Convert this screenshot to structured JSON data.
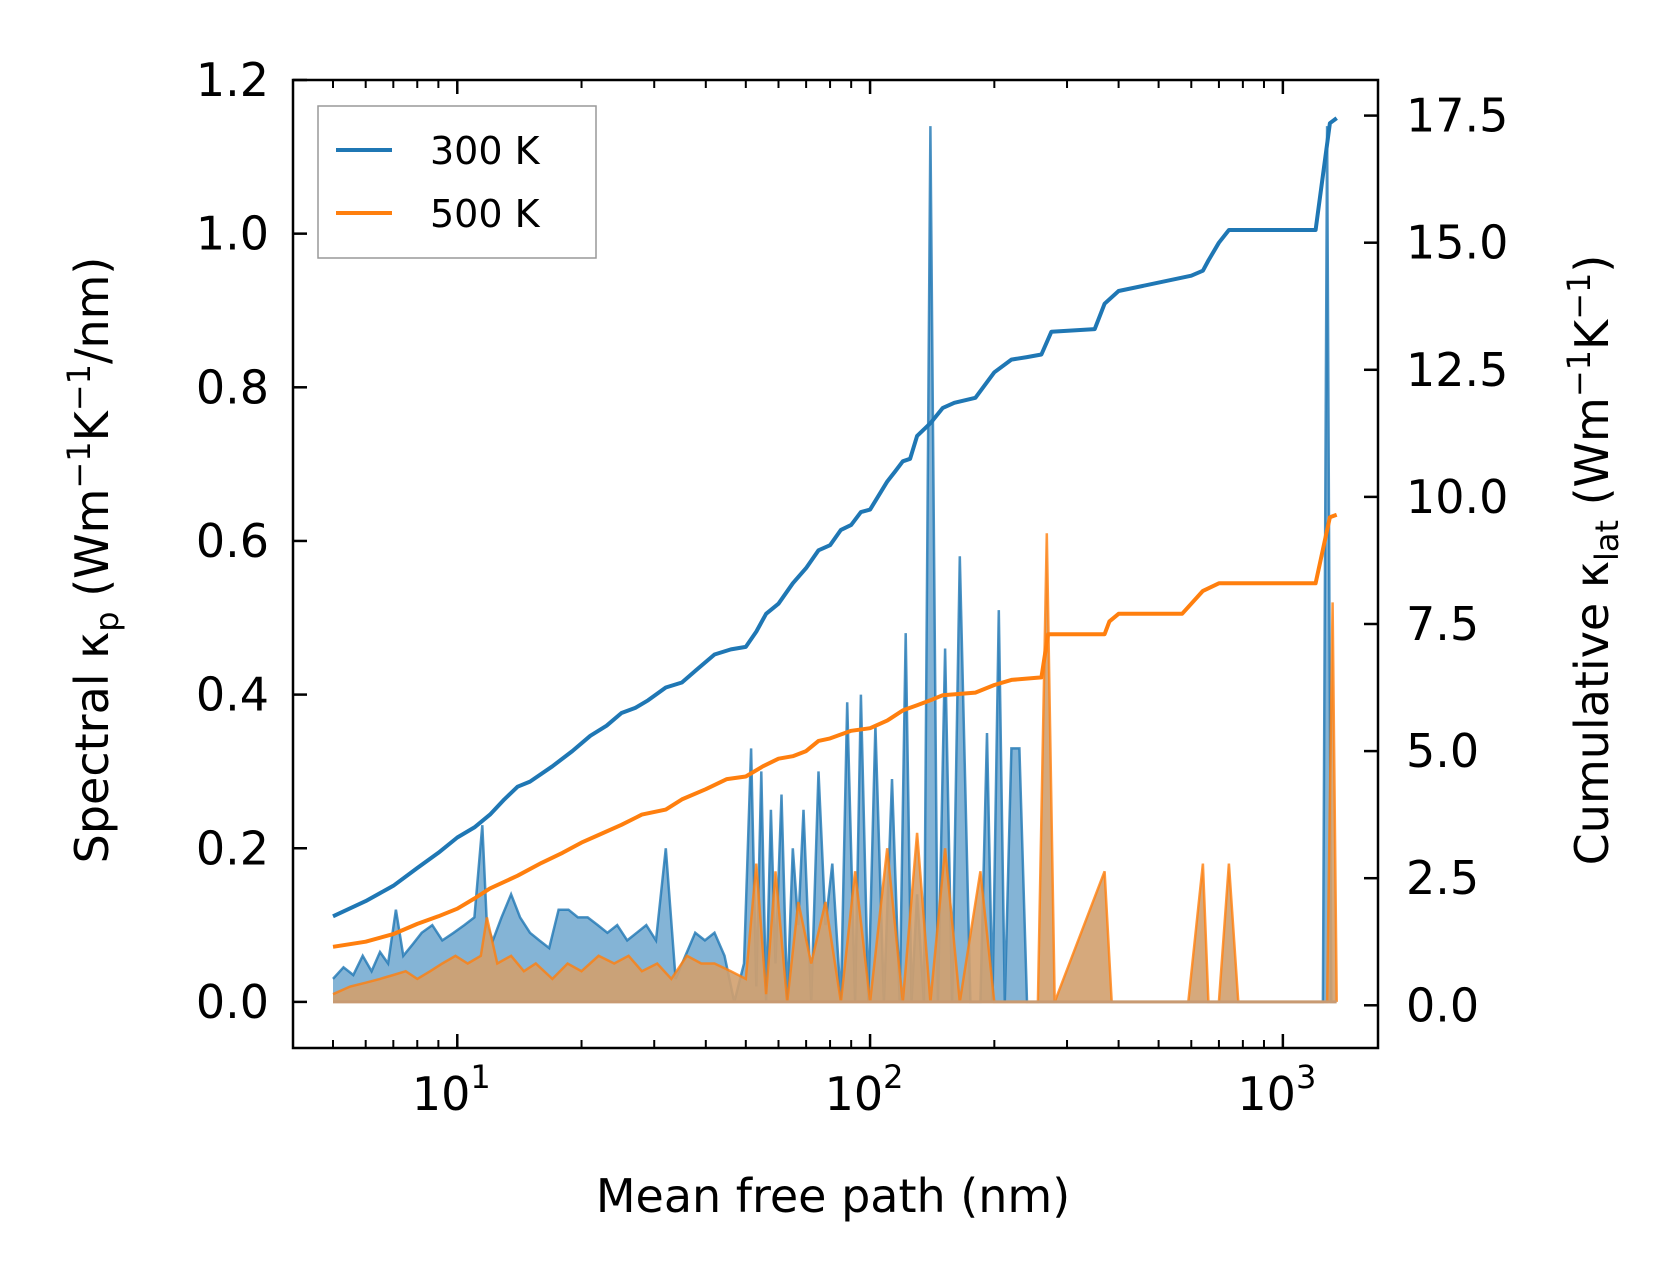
{
  "chart_data": {
    "type": "line",
    "title": "",
    "xlabel": "Mean free path (nm)",
    "ylabel_left": "Spectral κ_p (Wm⁻¹K⁻¹/nm)",
    "ylabel_right": "Cumulative κ_lat (Wm⁻¹K⁻¹)",
    "xscale": "log",
    "xlim": [
      4.0,
      1700
    ],
    "ylim_left": [
      -0.06,
      1.2
    ],
    "ylim_right": [
      -0.84,
      18.2
    ],
    "x_tick_labels": [
      {
        "base": "10",
        "exp": "1",
        "value": 10
      },
      {
        "base": "10",
        "exp": "2",
        "value": 100
      },
      {
        "base": "10",
        "exp": "3",
        "value": 1000
      }
    ],
    "y_left_tick_labels": [
      "0.0",
      "0.2",
      "0.4",
      "0.6",
      "0.8",
      "1.0",
      "1.2"
    ],
    "y_left_tick_values": [
      0.0,
      0.2,
      0.4,
      0.6,
      0.8,
      1.0,
      1.2
    ],
    "y_right_tick_labels": [
      "0.0",
      "2.5",
      "5.0",
      "7.5",
      "10.0",
      "12.5",
      "15.0",
      "17.5"
    ],
    "y_right_tick_values": [
      0.0,
      2.5,
      5.0,
      7.5,
      10.0,
      12.5,
      15.0,
      17.5
    ],
    "legend": {
      "position": "upper-left",
      "entries": [
        "300 K",
        "500 K"
      ]
    },
    "colors": {
      "300K": "#1f77b4",
      "500K": "#ff7f0e",
      "fill300": "#1f77b4",
      "fill500": "#d2a06e"
    },
    "cumulative_series": [
      {
        "name": "300 K",
        "color": "#1f77b4",
        "x": [
          5,
          6,
          7,
          8,
          9,
          10,
          11,
          12,
          13,
          14,
          15,
          17,
          19,
          21,
          23,
          25,
          27,
          29,
          32,
          35,
          38,
          42,
          46,
          50,
          53,
          56,
          60,
          65,
          70,
          75,
          80,
          85,
          90,
          95,
          100,
          110,
          115,
          120,
          125,
          130,
          140,
          150,
          160,
          180,
          200,
          220,
          240,
          260,
          275,
          350,
          370,
          400,
          600,
          640,
          660,
          700,
          740,
          1200,
          1300,
          1350
        ],
        "y": [
          1.75,
          2.05,
          2.35,
          2.7,
          3.0,
          3.3,
          3.5,
          3.75,
          4.05,
          4.3,
          4.4,
          4.7,
          5.0,
          5.3,
          5.5,
          5.75,
          5.85,
          6.0,
          6.25,
          6.35,
          6.6,
          6.9,
          7.0,
          7.05,
          7.35,
          7.7,
          7.9,
          8.3,
          8.6,
          8.95,
          9.05,
          9.35,
          9.45,
          9.7,
          9.75,
          10.3,
          10.5,
          10.7,
          10.75,
          11.2,
          11.45,
          11.75,
          11.85,
          11.95,
          12.45,
          12.7,
          12.75,
          12.8,
          13.25,
          13.3,
          13.8,
          14.05,
          14.35,
          14.45,
          14.65,
          15.0,
          15.25,
          15.25,
          17.35,
          17.45
        ]
      },
      {
        "name": "500 K",
        "color": "#ff7f0e",
        "x": [
          5,
          6,
          7,
          8,
          9,
          10,
          11,
          12,
          14,
          16,
          18,
          20,
          22,
          25,
          28,
          32,
          35,
          40,
          45,
          50,
          55,
          60,
          65,
          70,
          75,
          80,
          90,
          100,
          110,
          120,
          130,
          140,
          150,
          180,
          200,
          220,
          260,
          270,
          370,
          380,
          400,
          570,
          600,
          640,
          700,
          1200,
          1300,
          1350
        ],
        "y": [
          1.15,
          1.25,
          1.4,
          1.6,
          1.75,
          1.9,
          2.1,
          2.3,
          2.55,
          2.8,
          3.0,
          3.2,
          3.35,
          3.55,
          3.75,
          3.85,
          4.05,
          4.25,
          4.45,
          4.5,
          4.7,
          4.85,
          4.9,
          5.0,
          5.2,
          5.25,
          5.4,
          5.45,
          5.6,
          5.8,
          5.9,
          6.0,
          6.1,
          6.15,
          6.3,
          6.4,
          6.45,
          7.3,
          7.3,
          7.55,
          7.7,
          7.7,
          7.9,
          8.15,
          8.3,
          8.3,
          9.6,
          9.65
        ]
      }
    ],
    "spectral_series": [
      {
        "name": "300 K",
        "x": [
          5,
          5.3,
          5.6,
          5.9,
          6.2,
          6.5,
          6.8,
          7.1,
          7.4,
          7.8,
          8.2,
          8.7,
          9.2,
          9.8,
          10.4,
          11.0,
          11.5,
          11.8,
          12.2,
          12.8,
          13.5,
          14.2,
          15.0,
          15.8,
          16.7,
          17.6,
          18.6,
          19.6,
          20.7,
          21.9,
          23.1,
          24.4,
          25.8,
          27.2,
          28.7,
          30.3,
          32.0,
          33.8,
          35.7,
          37.7,
          39.8,
          42.0,
          44.4,
          46.9,
          49.5,
          51.5,
          53.0,
          54.5,
          56.0,
          57.5,
          59.0,
          61.0,
          63.0,
          65.0,
          67.0,
          69.0,
          72.0,
          75.0,
          78.0,
          81.0,
          85.0,
          88.0,
          92.0,
          95.0,
          99.0,
          103.0,
          108.0,
          113.0,
          118.0,
          122.0,
          126.0,
          130.0,
          135.0,
          140.0,
          146.0,
          152.0,
          158.0,
          165.0,
          175.0,
          185.0,
          192.0,
          198.0,
          205.0,
          212.0,
          220.0,
          230.0,
          240.0,
          250.0,
          262.0,
          268.0,
          275.0,
          300.0,
          340.0,
          360.0,
          375.0,
          385.0,
          395.0,
          405.0,
          420.0,
          520.0,
          560.0,
          580.0,
          600.0,
          630.0,
          650.0,
          670.0,
          690.0,
          710.0,
          730.0,
          750.0,
          770.0,
          800.0,
          1200.0,
          1250.0,
          1280.0,
          1310.0,
          1340.0
        ],
        "y": [
          0.03,
          0.045,
          0.035,
          0.06,
          0.04,
          0.065,
          0.05,
          0.12,
          0.06,
          0.075,
          0.09,
          0.1,
          0.08,
          0.09,
          0.1,
          0.11,
          0.23,
          0.1,
          0.08,
          0.11,
          0.14,
          0.11,
          0.09,
          0.08,
          0.07,
          0.12,
          0.12,
          0.11,
          0.11,
          0.1,
          0.09,
          0.1,
          0.08,
          0.09,
          0.1,
          0.08,
          0.2,
          0.03,
          0.06,
          0.09,
          0.08,
          0.09,
          0.06,
          0.0,
          0.05,
          0.33,
          0.02,
          0.3,
          0.0,
          0.25,
          0.05,
          0.27,
          0.0,
          0.2,
          0.1,
          0.25,
          0.0,
          0.3,
          0.1,
          0.18,
          0.0,
          0.39,
          0.0,
          0.4,
          0.0,
          0.36,
          0.0,
          0.29,
          0.0,
          0.48,
          0.0,
          0.14,
          0.0,
          1.14,
          0.0,
          0.46,
          0.0,
          0.58,
          0.0,
          0.0,
          0.35,
          0.0,
          0.51,
          0.0,
          0.33,
          0.33,
          0.0,
          0.0,
          0.0,
          0.0,
          0.0,
          0.0,
          0.0,
          0.0,
          0.0,
          0.0,
          0.0,
          0.0,
          0.0,
          0.0,
          0.0,
          0.0,
          0.0,
          0.0,
          0.0,
          0.0,
          0.0,
          0.0,
          0.0,
          0.0,
          0.0,
          0.0,
          0.0,
          0.0,
          1.14,
          0.0,
          0.0
        ]
      },
      {
        "name": "500 K",
        "x": [
          5,
          5.5,
          6.0,
          6.5,
          7.0,
          7.5,
          8.0,
          8.6,
          9.2,
          9.9,
          10.6,
          11.4,
          11.8,
          12.5,
          13.5,
          14.5,
          15.5,
          17.0,
          18.5,
          20.0,
          22.0,
          24.0,
          26.0,
          28.0,
          30.5,
          33.0,
          36.0,
          39.0,
          42.0,
          46.0,
          50.0,
          53.0,
          56.0,
          59.0,
          63.0,
          67.0,
          72.0,
          78.0,
          85.0,
          92.0,
          100.0,
          110.0,
          120.0,
          130.0,
          140.0,
          152.0,
          165.0,
          185.0,
          200.0,
          215.0,
          235.0,
          255.0,
          268.0,
          280.0,
          370.0,
          385.0,
          400.0,
          420.0,
          560.0,
          590.0,
          640.0,
          660.0,
          700.0,
          740.0,
          780.0,
          1200.0,
          1280.0,
          1320.0,
          1350.0
        ],
        "y": [
          0.01,
          0.02,
          0.025,
          0.03,
          0.035,
          0.04,
          0.03,
          0.04,
          0.05,
          0.06,
          0.05,
          0.06,
          0.11,
          0.05,
          0.06,
          0.04,
          0.05,
          0.03,
          0.05,
          0.04,
          0.06,
          0.05,
          0.06,
          0.04,
          0.05,
          0.03,
          0.06,
          0.05,
          0.05,
          0.04,
          0.03,
          0.18,
          0.01,
          0.17,
          0.0,
          0.13,
          0.05,
          0.13,
          0.0,
          0.17,
          0.0,
          0.2,
          0.0,
          0.22,
          0.0,
          0.2,
          0.0,
          0.17,
          0.0,
          0.0,
          0.0,
          0.0,
          0.61,
          0.0,
          0.17,
          0.0,
          0.0,
          0.0,
          0.0,
          0.0,
          0.18,
          0.0,
          0.0,
          0.18,
          0.0,
          0.0,
          0.0,
          0.52,
          0.0
        ]
      }
    ]
  }
}
